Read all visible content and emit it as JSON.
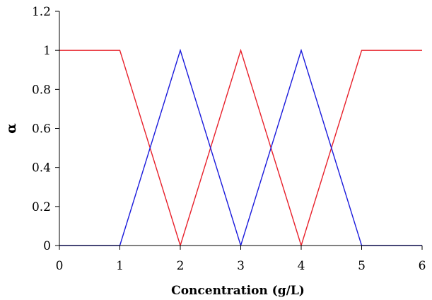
{
  "chart_data": {
    "type": "line",
    "title": "",
    "xlabel": "Concentration (g/L)",
    "ylabel": "α",
    "xlim": [
      0,
      6
    ],
    "ylim": [
      0,
      1.2
    ],
    "xticks": [
      0,
      1,
      2,
      3,
      4,
      5,
      6
    ],
    "xtick_labels": [
      "0",
      "1",
      "2",
      "3",
      "4",
      "5",
      "6"
    ],
    "yticks": [
      0,
      0.2,
      0.4,
      0.6,
      0.8,
      1,
      1.2
    ],
    "ytick_labels": [
      "0",
      "0.2",
      "0.4",
      "0.6",
      "0.8",
      "1",
      "1.2"
    ],
    "grid": false,
    "legend": "none",
    "series": [
      {
        "color": "#e8202a",
        "x": [
          0,
          1,
          2,
          3,
          4,
          5,
          6
        ],
        "y": [
          1,
          1,
          0,
          1,
          0,
          1,
          1
        ]
      },
      {
        "color": "#1a1adc",
        "x": [
          0,
          1,
          2,
          3,
          4,
          5,
          6
        ],
        "y": [
          0,
          0,
          1,
          0,
          1,
          0,
          0
        ]
      }
    ]
  }
}
